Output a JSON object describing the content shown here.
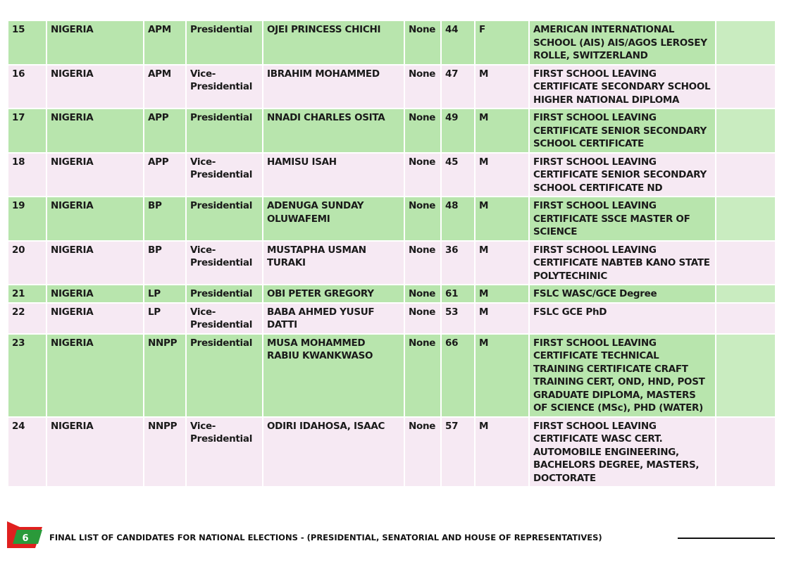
{
  "rows": [
    [
      "15",
      "NIGERIA",
      "APM",
      "Presidential",
      "OJEI PRINCESS CHICHI",
      "None",
      "44",
      "F",
      "AMERICAN INTERNATIONAL SCHOOL (AIS) AIS/AGOS LEROSEY ROLLE, SWITZERLAND"
    ],
    [
      "16",
      "NIGERIA",
      "APM",
      "Vice-Presidential",
      "IBRAHIM MOHAMMED",
      "None",
      "47",
      "M",
      "FIRST SCHOOL LEAVING CERTIFICATE SECONDARY SCHOOL HIGHER NATIONAL DIPLOMA"
    ],
    [
      "17",
      "NIGERIA",
      "APP",
      "Presidential",
      "NNADI CHARLES OSITA",
      "None",
      "49",
      "M",
      "FIRST SCHOOL LEAVING CERTIFICATE SENIOR SECONDARY SCHOOL CERTIFICATE"
    ],
    [
      "18",
      "NIGERIA",
      "APP",
      "Vice-Presidential",
      "HAMISU ISAH",
      "None",
      "45",
      "M",
      "FIRST SCHOOL LEAVING CERTIFICATE SENIOR SECONDARY SCHOOL CERTIFICATE ND"
    ],
    [
      "19",
      "NIGERIA",
      "BP",
      "Presidential",
      "ADENUGA SUNDAY OLUWAFEMI",
      "None",
      "48",
      "M",
      "FIRST SCHOOL LEAVING CERTIFICATE SSCE MASTER OF SCIENCE"
    ],
    [
      "20",
      "NIGERIA",
      "BP",
      "Vice-Presidential",
      "MUSTAPHA USMAN TURAKI",
      "None",
      "36",
      "M",
      "FIRST SCHOOL LEAVING CERTIFICATE NABTEB KANO STATE POLYTECHINIC"
    ],
    [
      "21",
      "NIGERIA",
      "LP",
      "Presidential",
      "OBI PETER GREGORY",
      "None",
      "61",
      "M",
      "FSLC WASC/GCE Degree"
    ],
    [
      "22",
      "NIGERIA",
      "LP",
      "Vice-Presidential",
      "BABA AHMED YUSUF DATTI",
      "None",
      "53",
      "M",
      "FSLC GCE PhD"
    ],
    [
      "23",
      "NIGERIA",
      "NNPP",
      "Presidential",
      "MUSA MOHAMMED RABIU KWANKWASO",
      "None",
      "66",
      "M",
      "FIRST SCHOOL LEAVING CERTIFICATE TECHNICAL TRAINING CERTIFICATE CRAFT TRAINING CERT, OND, HND, POST GRADUATE DIPLOMA, MASTERS OF SCIENCE (MSc), PHD (WATER)"
    ],
    [
      "24",
      "NIGERIA",
      "NNPP",
      "Vice-Presidential",
      "ODIRI IDAHOSA, ISAAC",
      "None",
      "57",
      "M",
      "FIRST SCHOOL LEAVING CERTIFICATE WASC CERT. AUTOMOBILE ENGINEERING, BACHELORS DEGREE, MASTERS, DOCTORATE"
    ]
  ],
  "footer": {
    "page_number": "6",
    "title": "FINAL LIST OF CANDIDATES FOR NATIONAL ELECTIONS - (PRESIDENTIAL, SENATORIAL AND HOUSE OF REPRESENTATIVES)"
  },
  "colors": {
    "green_row": "#b8e5ad",
    "pink_row": "#f6e9f3",
    "flag_red": "#e0201f",
    "flag_green": "#2a9a3a"
  }
}
